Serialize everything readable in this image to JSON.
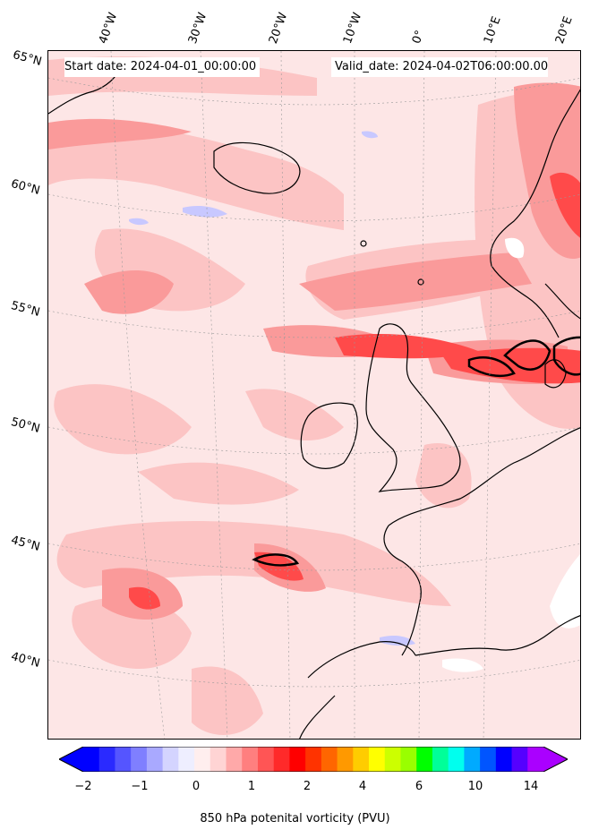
{
  "header": {
    "start_date": "Start date: 2024-04-01_00:00:00",
    "valid_date": "Valid_date: 2024-04-02T06:00:00.00"
  },
  "longitude_labels": [
    "40°W",
    "30°W",
    "20°W",
    "10°W",
    "0°",
    "10°E",
    "20°E"
  ],
  "latitude_labels": [
    "65°N",
    "60°N",
    "55°N",
    "50°N",
    "45°N",
    "40°N"
  ],
  "colorbar": {
    "label": "850 hPa potenital vorticity (PVU)",
    "ticks": [
      "−2",
      "−1",
      "0",
      "1",
      "2",
      "4",
      "6",
      "10",
      "14"
    ],
    "colors": [
      "#0000ff",
      "#2a2aff",
      "#5555ff",
      "#7f7fff",
      "#a9a9ff",
      "#d4d4ff",
      "#eeeeff",
      "#ffeeee",
      "#ffd4d4",
      "#ffa9a9",
      "#ff7f7f",
      "#ff5555",
      "#ff2a2a",
      "#ff0000",
      "#ff3300",
      "#ff6600",
      "#ff9900",
      "#ffcc00",
      "#ffff00",
      "#ccff00",
      "#99ff00",
      "#00ff00",
      "#00ff99",
      "#00ffee",
      "#00aaff",
      "#0055ff",
      "#0000ff",
      "#5500ff",
      "#aa00ff"
    ],
    "under_color": "#0000ff",
    "over_color": "#aa00ff"
  },
  "field": {
    "variable": "850 hPa potential vorticity",
    "units": "PVU"
  }
}
